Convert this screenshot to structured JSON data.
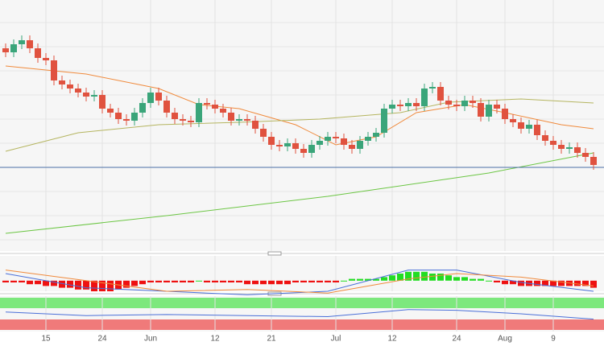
{
  "chart_data": {
    "type": "candlestick",
    "categories": [
      null,
      null,
      null,
      null,
      null,
      "15",
      null,
      null,
      null,
      null,
      null,
      null,
      "24",
      null,
      null,
      null,
      null,
      null,
      "Jun",
      null,
      null,
      null,
      null,
      null,
      null,
      null,
      "12",
      null,
      null,
      null,
      null,
      null,
      null,
      "21",
      null,
      null,
      null,
      null,
      null,
      null,
      null,
      "Jul",
      null,
      null,
      null,
      null,
      null,
      null,
      "12",
      null,
      null,
      null,
      null,
      null,
      null,
      null,
      "24",
      null,
      null,
      null,
      null,
      null,
      "Aug",
      null,
      null,
      null,
      null,
      null,
      "9",
      null,
      null,
      null,
      null,
      null
    ],
    "open": [
      250,
      245,
      255,
      260,
      250,
      238,
      235,
      210,
      205,
      200,
      195,
      190,
      192,
      175,
      170,
      162,
      160,
      170,
      182,
      195,
      185,
      170,
      162,
      160,
      158,
      182,
      180,
      175,
      170,
      160,
      162,
      160,
      150,
      140,
      130,
      128,
      132,
      125,
      120,
      130,
      135,
      140,
      138,
      130,
      125,
      135,
      140,
      145,
      175,
      180,
      178,
      182,
      178,
      200,
      202,
      185,
      180,
      178,
      185,
      182,
      165,
      180,
      175,
      162,
      158,
      150,
      155,
      142,
      135,
      130,
      125,
      127,
      120,
      115
    ],
    "high": [
      256,
      261,
      266,
      266,
      256,
      244,
      241,
      216,
      211,
      206,
      201,
      198,
      198,
      181,
      176,
      168,
      176,
      188,
      201,
      201,
      191,
      176,
      168,
      166,
      188,
      188,
      186,
      181,
      176,
      168,
      168,
      166,
      156,
      146,
      136,
      138,
      138,
      131,
      136,
      141,
      146,
      146,
      144,
      136,
      141,
      146,
      151,
      181,
      186,
      186,
      188,
      188,
      206,
      208,
      208,
      191,
      186,
      191,
      191,
      188,
      186,
      186,
      181,
      168,
      164,
      161,
      161,
      148,
      141,
      136,
      133,
      133,
      126,
      121
    ],
    "low": [
      239,
      239,
      249,
      244,
      232,
      229,
      204,
      199,
      194,
      189,
      184,
      184,
      169,
      164,
      156,
      154,
      154,
      164,
      176,
      179,
      164,
      156,
      154,
      152,
      152,
      174,
      169,
      164,
      154,
      154,
      154,
      144,
      134,
      124,
      122,
      122,
      119,
      114,
      114,
      124,
      129,
      132,
      124,
      119,
      119,
      129,
      134,
      139,
      169,
      172,
      172,
      172,
      172,
      194,
      179,
      174,
      172,
      172,
      176,
      159,
      159,
      169,
      156,
      152,
      144,
      144,
      136,
      129,
      124,
      119,
      119,
      114,
      109,
      99
    ],
    "close": [
      245,
      255,
      260,
      250,
      238,
      235,
      210,
      205,
      200,
      195,
      190,
      192,
      175,
      170,
      162,
      160,
      170,
      182,
      195,
      185,
      170,
      162,
      160,
      158,
      182,
      180,
      175,
      170,
      160,
      162,
      160,
      150,
      140,
      130,
      128,
      132,
      125,
      120,
      130,
      135,
      140,
      138,
      130,
      125,
      135,
      140,
      145,
      175,
      180,
      178,
      182,
      178,
      200,
      202,
      185,
      180,
      178,
      185,
      182,
      165,
      180,
      175,
      162,
      158,
      150,
      155,
      142,
      135,
      130,
      125,
      127,
      120,
      115,
      105
    ],
    "up_color": "#3aa57a",
    "down_color": "#e0523f",
    "ylim": [
      0,
      310
    ],
    "level": 102,
    "level_color": "#4a6fa5",
    "overlays": [
      {
        "color": "#f08a3c",
        "x": [
          0,
          10,
          19,
          24,
          29,
          36,
          41,
          46,
          51,
          57,
          62,
          69,
          73
        ],
        "values": [
          228,
          218,
          200,
          180,
          175,
          155,
          130,
          140,
          170,
          180,
          170,
          155,
          150
        ]
      },
      {
        "color": "#b5b560",
        "x": [
          0,
          9,
          19,
          29,
          39,
          49,
          55,
          64,
          73
        ],
        "values": [
          122,
          145,
          155,
          158,
          162,
          170,
          183,
          187,
          182
        ]
      },
      {
        "color": "#6cc644",
        "x": [
          0,
          20,
          40,
          60,
          73
        ],
        "values": [
          20,
          42,
          66,
          95,
          120
        ]
      }
    ],
    "macd": {
      "ylim": [
        -6,
        14
      ],
      "histogram": [
        -1,
        -1,
        -1,
        -2,
        -2,
        -3,
        -3,
        -4,
        -4,
        -5,
        -5,
        -6,
        -6,
        -6,
        -5,
        -4,
        -3,
        -2,
        -1,
        -1,
        -1,
        -1,
        -1,
        -1,
        0,
        -1,
        -1,
        -1,
        -1,
        -1,
        -2,
        -2,
        -2,
        -2,
        -2,
        -2,
        -1,
        -1,
        -1,
        -1,
        -1,
        -1,
        0,
        1,
        1,
        1,
        1,
        2,
        3,
        4,
        5,
        5,
        5,
        4,
        4,
        3,
        2,
        2,
        1,
        1,
        0,
        -1,
        -2,
        -2,
        -3,
        -3,
        -3,
        -3,
        -3,
        -3,
        -3,
        -3,
        -3,
        -4
      ],
      "lines": [
        {
          "color": "#4a6fd8",
          "x": [
            0,
            10,
            20,
            30,
            40,
            50,
            56,
            64,
            73
          ],
          "values": [
            4,
            -4,
            -6,
            -8,
            -6,
            6,
            6,
            -1,
            -6
          ]
        },
        {
          "color": "#f08a3c",
          "x": [
            0,
            10,
            20,
            30,
            40,
            50,
            56,
            64,
            73
          ],
          "values": [
            6,
            0,
            -6,
            -5,
            -7,
            1,
            4,
            2,
            -3
          ]
        }
      ]
    },
    "rsi": {
      "ylim": [
        0,
        100
      ],
      "color": "#4a6fd8",
      "x": [
        0,
        10,
        20,
        30,
        40,
        50,
        56,
        64,
        73
      ],
      "values": [
        55,
        45,
        48,
        45,
        42,
        62,
        60,
        50,
        35
      ]
    }
  }
}
